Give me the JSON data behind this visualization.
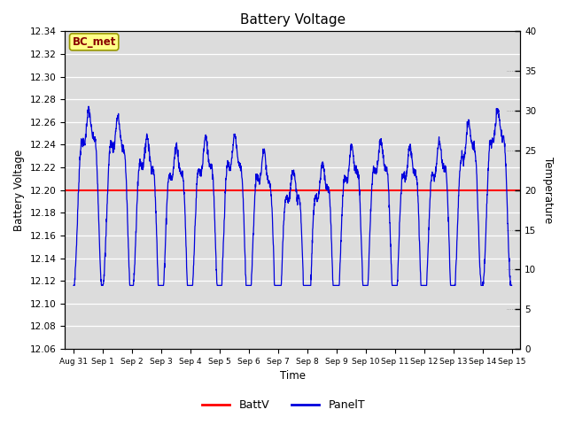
{
  "title": "Battery Voltage",
  "xlabel": "Time",
  "ylabel_left": "Battery Voltage",
  "ylabel_right": "Temperature",
  "ylim_left": [
    12.06,
    12.34
  ],
  "ylim_right": [
    0,
    40
  ],
  "batt_v": 12.2,
  "batt_color": "#ff0000",
  "panel_color": "#0000dd",
  "bg_color": "#dcdcdc",
  "fig_bg": "#ffffff",
  "x_tick_labels": [
    "Aug 31",
    "Sep 1",
    "Sep 2",
    "Sep 3",
    "Sep 4",
    "Sep 5",
    "Sep 6",
    "Sep 7",
    "Sep 8",
    "Sep 9",
    "Sep 10",
    "Sep 11",
    "Sep 12",
    "Sep 13",
    "Sep 14",
    "Sep 15"
  ],
  "legend_labels": [
    "BattV",
    "PanelT"
  ],
  "bc_met_text": "BC_met",
  "bc_met_bg": "#ffff88",
  "bc_met_fg": "#880000",
  "bc_met_edge": "#999900",
  "left_yticks": [
    12.06,
    12.08,
    12.1,
    12.12,
    12.14,
    12.16,
    12.18,
    12.2,
    12.22,
    12.24,
    12.26,
    12.28,
    12.3,
    12.32,
    12.34
  ],
  "right_yticks": [
    0,
    5,
    10,
    15,
    20,
    25,
    30,
    35,
    40
  ],
  "npoints": 2160,
  "ndays": 15
}
